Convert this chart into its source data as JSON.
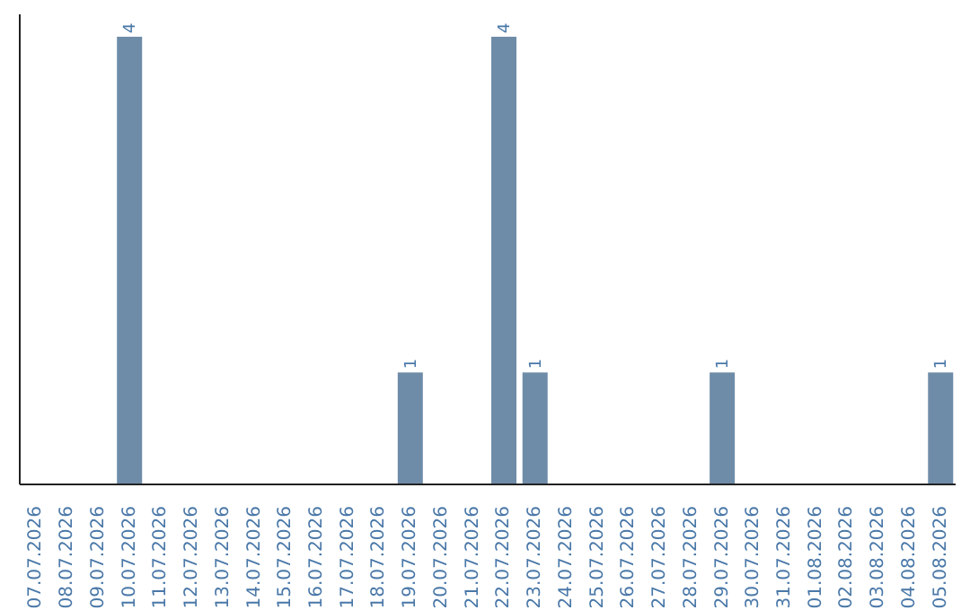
{
  "chart_data": {
    "type": "bar",
    "categories": [
      "07.07.2026",
      "08.07.2026",
      "09.07.2026",
      "10.07.2026",
      "11.07.2026",
      "12.07.2026",
      "13.07.2026",
      "14.07.2026",
      "15.07.2026",
      "16.07.2026",
      "17.07.2026",
      "18.07.2026",
      "19.07.2026",
      "20.07.2026",
      "21.07.2026",
      "22.07.2026",
      "23.07.2026",
      "24.07.2026",
      "25.07.2026",
      "26.07.2026",
      "27.07.2026",
      "28.07.2026",
      "29.07.2026",
      "30.07.2026",
      "31.07.2026",
      "01.08.2026",
      "02.08.2026",
      "03.08.2026",
      "04.08.2026",
      "05.08.2026"
    ],
    "values": [
      null,
      null,
      null,
      4,
      null,
      null,
      null,
      null,
      null,
      null,
      null,
      null,
      1,
      null,
      null,
      4,
      1,
      null,
      null,
      null,
      null,
      null,
      1,
      null,
      null,
      null,
      null,
      null,
      null,
      1
    ],
    "data_labels": true,
    "color": "#6e8ca8",
    "grid": false,
    "legend": false
  }
}
